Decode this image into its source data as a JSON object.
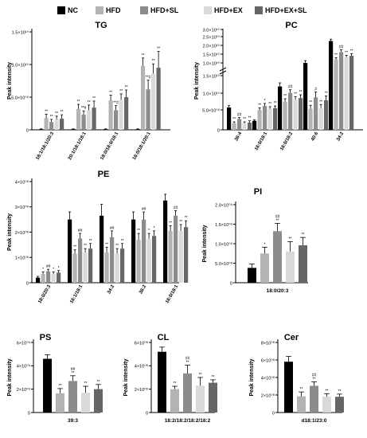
{
  "legend": [
    {
      "label": "NC",
      "color": "#000000"
    },
    {
      "label": "HFD",
      "color": "#b3b3b3"
    },
    {
      "label": "HFD+SL",
      "color": "#8c8c8c"
    },
    {
      "label": "HFD+EX",
      "color": "#d9d9d9"
    },
    {
      "label": "HFD+EX+SL",
      "color": "#666666"
    }
  ],
  "chart_data": [
    {
      "type": "bar",
      "title": "TG",
      "ylabel": "Peak intensity",
      "yticks": [
        "0",
        "5.0×10⁰⁹",
        "1.0×10¹⁰",
        "1.5×10¹⁰"
      ],
      "ylim": [
        0,
        15
      ],
      "unit_note": "values ×10⁹",
      "categories": [
        "18:1/18:1/20:3",
        "20:1/18:1/18:1",
        "18:0/18:0/18:1",
        "16:0/18:1/20:1"
      ],
      "series": [
        {
          "name": "NC",
          "values": [
            0.1,
            0.1,
            0.1,
            0.1
          ],
          "errors": [
            0.05,
            0.05,
            0.05,
            0.05
          ]
        },
        {
          "name": "HFD",
          "values": [
            1.8,
            3.2,
            4.5,
            9.8
          ],
          "errors": [
            0.6,
            0.7,
            0.8,
            1.2
          ]
        },
        {
          "name": "HFD+SL",
          "values": [
            1.2,
            2.3,
            3.0,
            6.2
          ],
          "errors": [
            0.4,
            0.6,
            0.7,
            1.4
          ]
        },
        {
          "name": "HFD+EX",
          "values": [
            1.6,
            3.0,
            4.6,
            8.6
          ],
          "errors": [
            0.5,
            0.8,
            0.9,
            1.5
          ]
        },
        {
          "name": "HFD+EX+SL",
          "values": [
            1.7,
            3.4,
            5.0,
            9.5
          ],
          "errors": [
            0.6,
            1.0,
            1.1,
            2.5
          ]
        }
      ],
      "marks": [
        [
          "",
          "**",
          "**",
          "**",
          "**"
        ],
        [
          "",
          "**",
          "**#",
          "**",
          "**"
        ],
        [
          "",
          "**",
          "**#",
          "**",
          "**"
        ],
        [
          "",
          "**",
          "**#",
          "**",
          "**"
        ]
      ]
    },
    {
      "type": "bar",
      "title": "PC",
      "ylabel": "Peak intensity",
      "yticks": [
        "0",
        "5.0×10⁰⁹",
        "1.0×10¹⁰",
        "1.5×10¹⁰",
        "1.0×10¹⁰",
        "1.5×10¹⁰",
        "2.0×10¹⁰",
        "2.5×10¹⁰",
        "3.0×10¹⁰"
      ],
      "axis_break": true,
      "unit_note": "values ×10⁹",
      "categories": [
        "36:4",
        "16:0/18:1",
        "16:0/18:2",
        "40:6",
        "34:2"
      ],
      "series": [
        {
          "name": "NC",
          "values": [
            6.2,
            2.5,
            12.0,
            15.5,
            25.0
          ],
          "errors": [
            0.5,
            0.3,
            1.0,
            1.0,
            0.8
          ]
        },
        {
          "name": "HFD",
          "values": [
            1.8,
            5.5,
            7.8,
            5.8,
            17.0
          ],
          "errors": [
            0.4,
            0.6,
            0.8,
            1.0,
            0.8
          ]
        },
        {
          "name": "HFD+SL",
          "values": [
            3.0,
            6.6,
            10.2,
            9.0,
            20.2
          ],
          "errors": [
            0.4,
            0.7,
            0.9,
            1.5,
            1.0
          ]
        },
        {
          "name": "HFD+EX",
          "values": [
            1.8,
            5.8,
            8.4,
            6.0,
            18.0
          ],
          "errors": [
            0.4,
            0.6,
            0.8,
            1.0,
            0.8
          ]
        },
        {
          "name": "HFD+EX+SL",
          "values": [
            2.0,
            6.0,
            8.8,
            8.2,
            18.6
          ],
          "errors": [
            0.5,
            0.6,
            0.9,
            1.2,
            0.9
          ]
        }
      ],
      "marks": [
        [
          "",
          "**",
          "##",
          "**",
          "**"
        ],
        [
          "",
          "**",
          "*",
          "**",
          "**"
        ],
        [
          "",
          "**",
          "##",
          "**",
          "**"
        ],
        [
          "",
          "**",
          "#",
          "**",
          "**"
        ],
        [
          "",
          "**",
          "##",
          "**",
          "**"
        ]
      ]
    },
    {
      "type": "bar",
      "title": "PE",
      "ylabel": "Peak intensity",
      "yticks": [
        "0",
        "1×10⁰⁸",
        "2×10⁰⁸",
        "3×10⁰⁸",
        "4×10⁰⁸"
      ],
      "ylim": [
        0,
        4
      ],
      "unit_note": "values ×10⁸",
      "categories": [
        "18:0/20:3",
        "16:1/18:1",
        "34:2",
        "36:2",
        "16:0/18:1"
      ],
      "series": [
        {
          "name": "NC",
          "values": [
            0.2,
            2.5,
            2.65,
            2.5,
            3.25
          ],
          "errors": [
            0.05,
            0.3,
            0.45,
            0.3,
            0.25
          ]
        },
        {
          "name": "HFD",
          "values": [
            0.35,
            1.15,
            1.2,
            1.7,
            2.05
          ],
          "errors": [
            0.08,
            0.15,
            0.2,
            0.25,
            0.2
          ]
        },
        {
          "name": "HFD+SL",
          "values": [
            0.45,
            1.75,
            1.8,
            2.5,
            2.65
          ],
          "errors": [
            0.08,
            0.2,
            0.25,
            0.3,
            0.2
          ]
        },
        {
          "name": "HFD+EX",
          "values": [
            0.35,
            1.2,
            1.15,
            1.75,
            2.05
          ],
          "errors": [
            0.08,
            0.15,
            0.2,
            0.2,
            0.25
          ]
        },
        {
          "name": "HFD+EX+SL",
          "values": [
            0.4,
            1.35,
            1.35,
            1.85,
            2.2
          ],
          "errors": [
            0.08,
            0.2,
            0.2,
            0.2,
            0.25
          ]
        }
      ],
      "marks": [
        [
          "",
          "*",
          "##",
          "*",
          "*"
        ],
        [
          "",
          "**",
          "##",
          "**",
          "**"
        ],
        [
          "",
          "**",
          "##",
          "**",
          "**"
        ],
        [
          "",
          "**",
          "##",
          "*",
          "*"
        ],
        [
          "",
          "**",
          "##",
          "**",
          "**"
        ]
      ]
    },
    {
      "type": "bar",
      "title": "PI",
      "ylabel": "Peak intensity",
      "yticks": [
        "0",
        "5.0×10⁰⁸",
        "1.0×10⁰⁹",
        "1.5×10⁰⁹",
        "2.0×10⁰⁹"
      ],
      "ylim": [
        0,
        20
      ],
      "unit_note": "values ×10⁸",
      "categories": [
        "18:0/20:3"
      ],
      "series": [
        {
          "name": "NC",
          "values": [
            3.8
          ],
          "errors": [
            1.0
          ]
        },
        {
          "name": "HFD",
          "values": [
            7.5
          ],
          "errors": [
            1.6
          ]
        },
        {
          "name": "HFD+SL",
          "values": [
            13.2
          ],
          "errors": [
            2.0
          ]
        },
        {
          "name": "HFD+EX",
          "values": [
            8.0
          ],
          "errors": [
            2.5
          ]
        },
        {
          "name": "HFD+EX+SL",
          "values": [
            9.6
          ],
          "errors": [
            2.0
          ]
        }
      ],
      "marks": [
        [
          "",
          "*",
          "##**",
          "**",
          "**"
        ]
      ]
    },
    {
      "type": "bar",
      "title": "PS",
      "ylabel": "Peak intensity",
      "yticks": [
        "0",
        "2×10⁰⁹",
        "4×10⁰⁹",
        "6×10⁰⁹"
      ],
      "ylim": [
        0,
        6
      ],
      "unit_note": "values ×10⁹",
      "categories": [
        "39:3"
      ],
      "series": [
        {
          "name": "NC",
          "values": [
            4.6
          ],
          "errors": [
            0.35
          ]
        },
        {
          "name": "HFD",
          "values": [
            1.65
          ],
          "errors": [
            0.4
          ]
        },
        {
          "name": "HFD+SL",
          "values": [
            2.7
          ],
          "errors": [
            0.45
          ]
        },
        {
          "name": "HFD+EX",
          "values": [
            1.7
          ],
          "errors": [
            0.55
          ]
        },
        {
          "name": "HFD+EX+SL",
          "values": [
            2.0
          ],
          "errors": [
            0.4
          ]
        }
      ],
      "marks": [
        [
          "",
          "**",
          "##**",
          "**",
          "**"
        ]
      ]
    },
    {
      "type": "bar",
      "title": "CL",
      "ylabel": "Peak intensity",
      "yticks": [
        "0",
        "2×10⁰⁸",
        "4×10⁰⁸",
        "6×10⁰⁸"
      ],
      "ylim": [
        0,
        6
      ],
      "unit_note": "values ×10⁸",
      "categories": [
        "18:2/18:2/18:2/18:2"
      ],
      "series": [
        {
          "name": "NC",
          "values": [
            5.2
          ],
          "errors": [
            0.4
          ]
        },
        {
          "name": "HFD",
          "values": [
            2.0
          ],
          "errors": [
            0.25
          ]
        },
        {
          "name": "HFD+SL",
          "values": [
            3.35
          ],
          "errors": [
            0.7
          ]
        },
        {
          "name": "HFD+EX",
          "values": [
            2.3
          ],
          "errors": [
            0.7
          ]
        },
        {
          "name": "HFD+EX+SL",
          "values": [
            2.55
          ],
          "errors": [
            0.25
          ]
        }
      ],
      "marks": [
        [
          "",
          "**",
          "##**",
          "**",
          "**"
        ]
      ]
    },
    {
      "type": "bar",
      "title": "Cer",
      "ylabel": "Peak intensity",
      "yticks": [
        "0",
        "2×10⁰⁸",
        "4×10⁰⁸",
        "6×10⁰⁸",
        "8×10⁰⁸"
      ],
      "ylim": [
        0,
        8
      ],
      "unit_note": "values ×10⁸",
      "categories": [
        "d18:1/23:0"
      ],
      "series": [
        {
          "name": "NC",
          "values": [
            5.8
          ],
          "errors": [
            0.6
          ]
        },
        {
          "name": "HFD",
          "values": [
            1.85
          ],
          "errors": [
            0.5
          ]
        },
        {
          "name": "HFD+SL",
          "values": [
            3.05
          ],
          "errors": [
            0.45
          ]
        },
        {
          "name": "HFD+EX",
          "values": [
            1.8
          ],
          "errors": [
            0.35
          ]
        },
        {
          "name": "HFD+EX+SL",
          "values": [
            1.8
          ],
          "errors": [
            0.3
          ]
        }
      ],
      "marks": [
        [
          "",
          "**",
          "##**",
          "**",
          "**"
        ]
      ]
    }
  ]
}
